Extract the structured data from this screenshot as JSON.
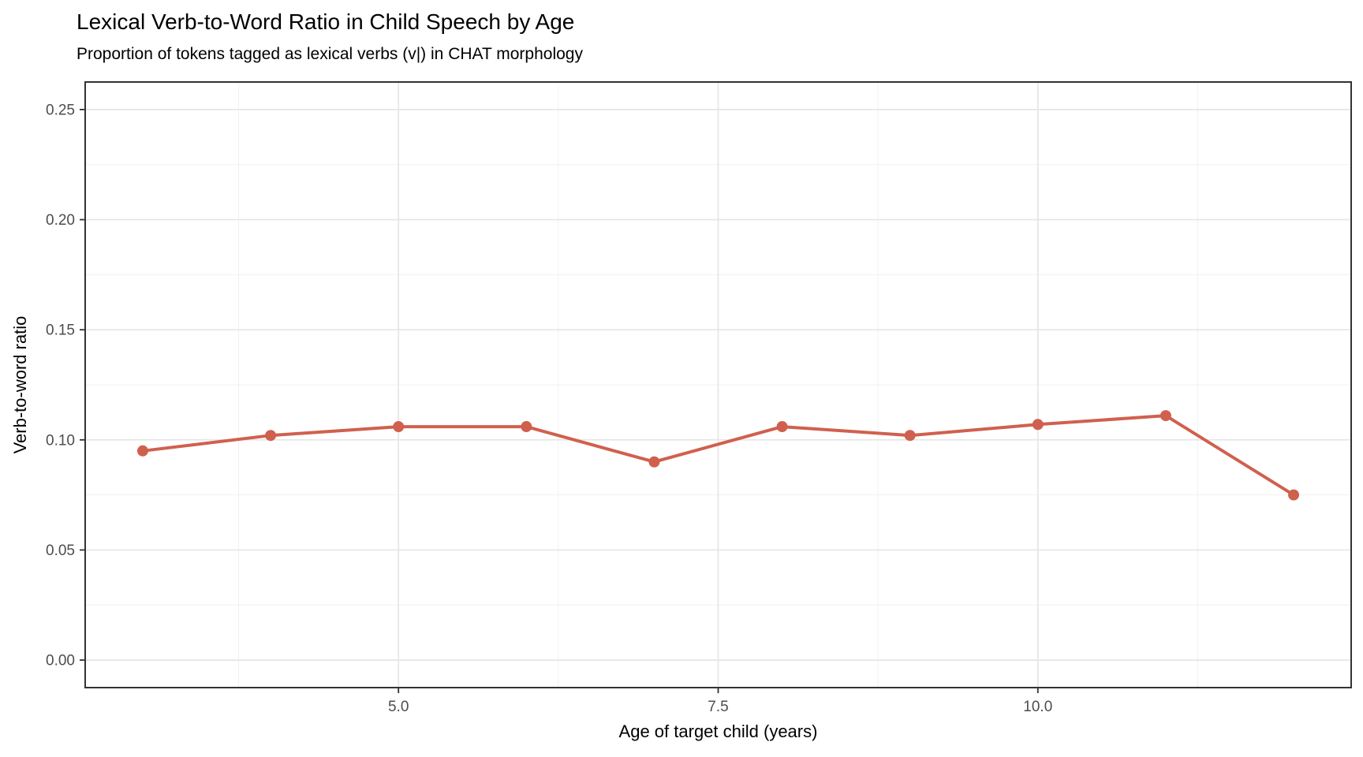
{
  "chart_data": {
    "type": "line",
    "title": "Lexical Verb-to-Word Ratio in Child Speech by Age",
    "subtitle": "Proportion of tokens tagged as lexical verbs (v|) in CHAT morphology",
    "xlabel": "Age of target child (years)",
    "ylabel": "Verb-to-word ratio",
    "x": [
      3,
      4,
      5,
      6,
      7,
      8,
      9,
      10,
      11,
      12
    ],
    "y": [
      0.095,
      0.102,
      0.106,
      0.106,
      0.09,
      0.106,
      0.102,
      0.107,
      0.111,
      0.075
    ],
    "xlim": [
      2.55,
      12.45
    ],
    "ylim": [
      -0.0125,
      0.2625
    ],
    "x_major_ticks": [
      5.0,
      7.5,
      10.0
    ],
    "x_tick_labels": [
      "5.0",
      "7.5",
      "10.0"
    ],
    "x_minor_ticks": [
      3.75,
      6.25,
      8.75,
      11.25
    ],
    "y_major_ticks": [
      0.0,
      0.05,
      0.1,
      0.15,
      0.2,
      0.25
    ],
    "y_tick_labels": [
      "0.00",
      "0.05",
      "0.10",
      "0.15",
      "0.20",
      "0.25"
    ],
    "y_minor_ticks": [
      0.025,
      0.075,
      0.125,
      0.175,
      0.225
    ],
    "grid": true,
    "legend": "none",
    "colors": {
      "line": "#D0604E",
      "point": "#D0604E",
      "grid_major": "#E6E6E6",
      "grid_minor": "#F1F1F1",
      "panel_border": "#333333",
      "tick": "#333333",
      "tick_label": "#4D4D4D",
      "text": "#000000",
      "background": "#FFFFFF"
    }
  }
}
